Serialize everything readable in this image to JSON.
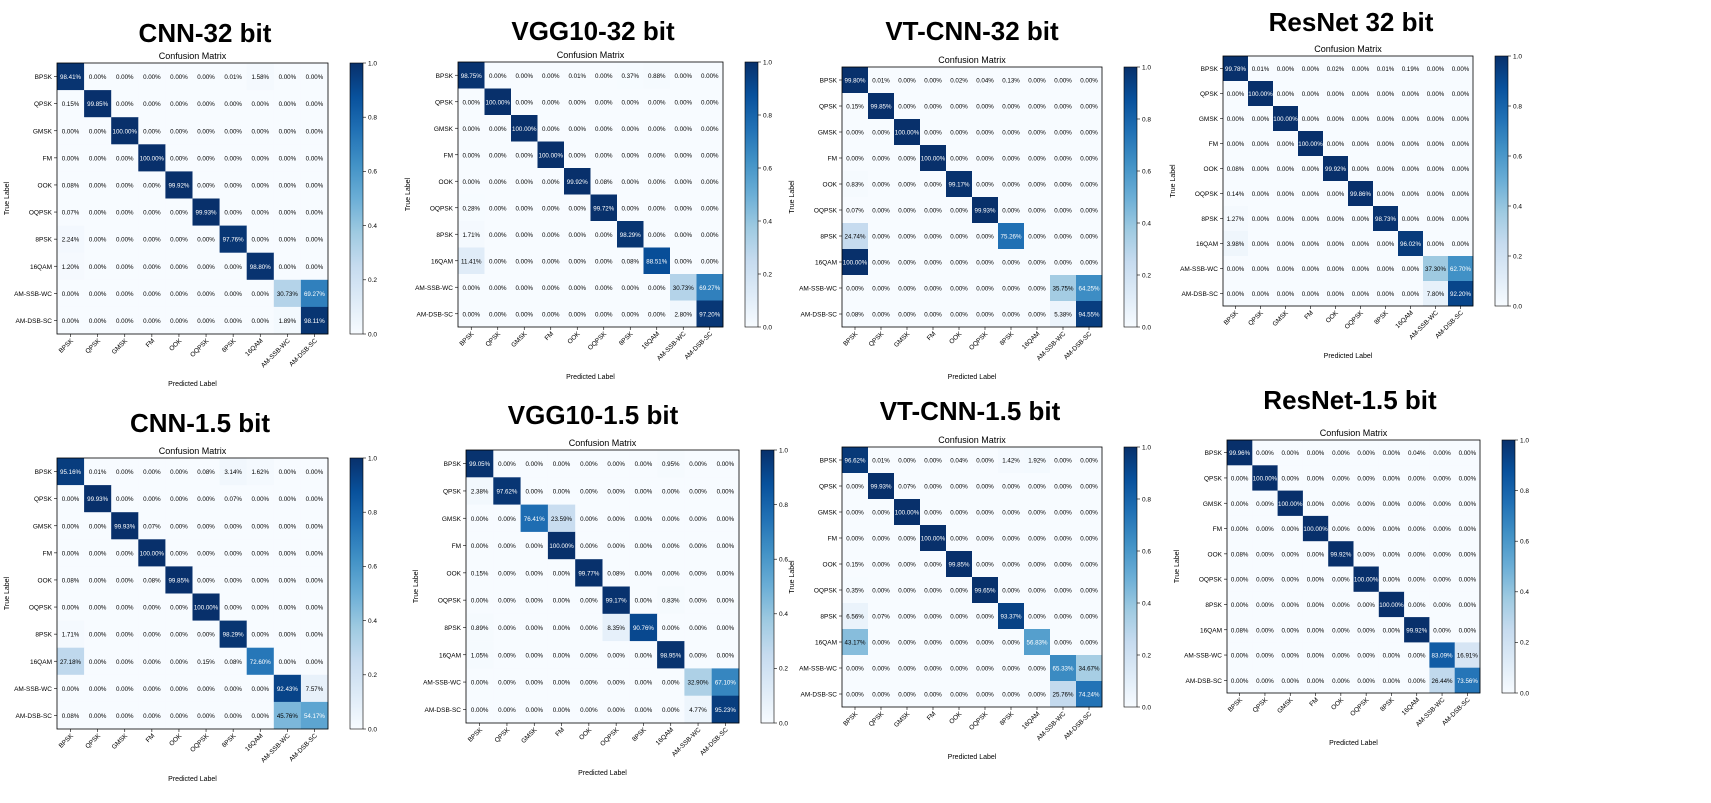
{
  "labels": [
    "BPSK",
    "QPSK",
    "GMSK",
    "FM",
    "OOK",
    "OQPSK",
    "8PSK",
    "16QAM",
    "AM-SSB-WC",
    "AM-DSB-SC"
  ],
  "inner_title": "Confusion Matrix",
  "xlabel": "Predicted Label",
  "ylabel": "True Label",
  "colorbar_ticks": [
    "0.0",
    "0.2",
    "0.4",
    "0.6",
    "0.8",
    "1.0"
  ],
  "chart_data": [
    {
      "type": "heatmap",
      "title": "CNN-32 bit",
      "subtitle": "Confusion Matrix",
      "xlabel": "Predicted Label",
      "ylabel": "True Label",
      "vmin": 0,
      "vmax": 1,
      "cells": [
        [
          "98.41%",
          "0.00%",
          "0.00%",
          "0.00%",
          "0.00%",
          "0.00%",
          "0.01%",
          "1.58%",
          "0.00%",
          "0.00%"
        ],
        [
          "0.15%",
          "99.85%",
          "0.00%",
          "0.00%",
          "0.00%",
          "0.00%",
          "0.00%",
          "0.00%",
          "0.00%",
          "0.00%"
        ],
        [
          "0.00%",
          "0.00%",
          "100.00%",
          "0.00%",
          "0.00%",
          "0.00%",
          "0.00%",
          "0.00%",
          "0.00%",
          "0.00%"
        ],
        [
          "0.00%",
          "0.00%",
          "0.00%",
          "100.00%",
          "0.00%",
          "0.00%",
          "0.00%",
          "0.00%",
          "0.00%",
          "0.00%"
        ],
        [
          "0.08%",
          "0.00%",
          "0.00%",
          "0.00%",
          "99.92%",
          "0.00%",
          "0.00%",
          "0.00%",
          "0.00%",
          "0.00%"
        ],
        [
          "0.07%",
          "0.00%",
          "0.00%",
          "0.00%",
          "0.00%",
          "99.93%",
          "0.00%",
          "0.00%",
          "0.00%",
          "0.00%"
        ],
        [
          "2.24%",
          "0.00%",
          "0.00%",
          "0.00%",
          "0.00%",
          "0.00%",
          "97.76%",
          "0.00%",
          "0.00%",
          "0.00%"
        ],
        [
          "1.20%",
          "0.00%",
          "0.00%",
          "0.00%",
          "0.00%",
          "0.00%",
          "0.00%",
          "98.80%",
          "0.00%",
          "0.00%"
        ],
        [
          "0.00%",
          "0.00%",
          "0.00%",
          "0.00%",
          "0.00%",
          "0.00%",
          "0.00%",
          "0.00%",
          "30.73%",
          "69.27%"
        ],
        [
          "0.00%",
          "0.00%",
          "0.00%",
          "0.00%",
          "0.00%",
          "0.00%",
          "0.00%",
          "0.00%",
          "1.89%",
          "98.11%"
        ]
      ]
    },
    {
      "type": "heatmap",
      "title": "VGG10-32 bit",
      "subtitle": "Confusion Matrix",
      "xlabel": "Predicted Label",
      "ylabel": "True Label",
      "vmin": 0,
      "vmax": 1,
      "cells": [
        [
          "98.75%",
          "0.00%",
          "0.00%",
          "0.00%",
          "0.01%",
          "0.00%",
          "0.37%",
          "0.88%",
          "0.00%",
          "0.00%"
        ],
        [
          "0.00%",
          "100.00%",
          "0.00%",
          "0.00%",
          "0.00%",
          "0.00%",
          "0.00%",
          "0.00%",
          "0.00%",
          "0.00%"
        ],
        [
          "0.00%",
          "0.00%",
          "100.00%",
          "0.00%",
          "0.00%",
          "0.00%",
          "0.00%",
          "0.00%",
          "0.00%",
          "0.00%"
        ],
        [
          "0.00%",
          "0.00%",
          "0.00%",
          "100.00%",
          "0.00%",
          "0.00%",
          "0.00%",
          "0.00%",
          "0.00%",
          "0.00%"
        ],
        [
          "0.00%",
          "0.00%",
          "0.00%",
          "0.00%",
          "99.92%",
          "0.08%",
          "0.00%",
          "0.00%",
          "0.00%",
          "0.00%"
        ],
        [
          "0.28%",
          "0.00%",
          "0.00%",
          "0.00%",
          "0.00%",
          "99.72%",
          "0.00%",
          "0.00%",
          "0.00%",
          "0.00%"
        ],
        [
          "1.71%",
          "0.00%",
          "0.00%",
          "0.00%",
          "0.00%",
          "0.00%",
          "98.29%",
          "0.00%",
          "0.00%",
          "0.00%"
        ],
        [
          "11.41%",
          "0.00%",
          "0.00%",
          "0.00%",
          "0.00%",
          "0.00%",
          "0.08%",
          "88.51%",
          "0.00%",
          "0.00%"
        ],
        [
          "0.00%",
          "0.00%",
          "0.00%",
          "0.00%",
          "0.00%",
          "0.00%",
          "0.00%",
          "0.00%",
          "30.73%",
          "69.27%"
        ],
        [
          "0.00%",
          "0.00%",
          "0.00%",
          "0.00%",
          "0.00%",
          "0.00%",
          "0.00%",
          "0.00%",
          "2.80%",
          "97.20%"
        ]
      ]
    },
    {
      "type": "heatmap",
      "title": "VT-CNN-32 bit",
      "subtitle": "Confusion Matrix",
      "xlabel": "Predicted Label",
      "ylabel": "True Label",
      "vmin": 0,
      "vmax": 1,
      "cells": [
        [
          "99.80%",
          "0.01%",
          "0.00%",
          "0.00%",
          "0.02%",
          "0.04%",
          "0.13%",
          "0.00%",
          "0.00%",
          "0.00%"
        ],
        [
          "0.15%",
          "99.85%",
          "0.00%",
          "0.00%",
          "0.00%",
          "0.00%",
          "0.00%",
          "0.00%",
          "0.00%",
          "0.00%"
        ],
        [
          "0.00%",
          "0.00%",
          "100.00%",
          "0.00%",
          "0.00%",
          "0.00%",
          "0.00%",
          "0.00%",
          "0.00%",
          "0.00%"
        ],
        [
          "0.00%",
          "0.00%",
          "0.00%",
          "100.00%",
          "0.00%",
          "0.00%",
          "0.00%",
          "0.00%",
          "0.00%",
          "0.00%"
        ],
        [
          "0.83%",
          "0.00%",
          "0.00%",
          "0.00%",
          "99.17%",
          "0.00%",
          "0.00%",
          "0.00%",
          "0.00%",
          "0.00%"
        ],
        [
          "0.07%",
          "0.00%",
          "0.00%",
          "0.00%",
          "0.00%",
          "99.93%",
          "0.00%",
          "0.00%",
          "0.00%",
          "0.00%"
        ],
        [
          "24.74%",
          "0.00%",
          "0.00%",
          "0.00%",
          "0.00%",
          "0.00%",
          "75.26%",
          "0.00%",
          "0.00%",
          "0.00%"
        ],
        [
          "100.00%",
          "0.00%",
          "0.00%",
          "0.00%",
          "0.00%",
          "0.00%",
          "0.00%",
          "0.00%",
          "0.00%",
          "0.00%"
        ],
        [
          "0.00%",
          "0.00%",
          "0.00%",
          "0.00%",
          "0.00%",
          "0.00%",
          "0.00%",
          "0.00%",
          "35.75%",
          "64.25%"
        ],
        [
          "0.08%",
          "0.00%",
          "0.00%",
          "0.00%",
          "0.00%",
          "0.00%",
          "0.00%",
          "0.00%",
          "5.38%",
          "94.55%"
        ]
      ]
    },
    {
      "type": "heatmap",
      "title": "ResNet 32 bit",
      "subtitle": "Confusion Matrix",
      "xlabel": "Predicted Label",
      "ylabel": "True Label",
      "vmin": 0,
      "vmax": 1,
      "cells": [
        [
          "99.78%",
          "0.01%",
          "0.00%",
          "0.00%",
          "0.02%",
          "0.00%",
          "0.01%",
          "0.19%",
          "0.00%",
          "0.00%"
        ],
        [
          "0.00%",
          "100.00%",
          "0.00%",
          "0.00%",
          "0.00%",
          "0.00%",
          "0.00%",
          "0.00%",
          "0.00%",
          "0.00%"
        ],
        [
          "0.00%",
          "0.00%",
          "100.00%",
          "0.00%",
          "0.00%",
          "0.00%",
          "0.00%",
          "0.00%",
          "0.00%",
          "0.00%"
        ],
        [
          "0.00%",
          "0.00%",
          "0.00%",
          "100.00%",
          "0.00%",
          "0.00%",
          "0.00%",
          "0.00%",
          "0.00%",
          "0.00%"
        ],
        [
          "0.08%",
          "0.00%",
          "0.00%",
          "0.00%",
          "99.92%",
          "0.00%",
          "0.00%",
          "0.00%",
          "0.00%",
          "0.00%"
        ],
        [
          "0.14%",
          "0.00%",
          "0.00%",
          "0.00%",
          "0.00%",
          "99.86%",
          "0.00%",
          "0.00%",
          "0.00%",
          "0.00%"
        ],
        [
          "1.27%",
          "0.00%",
          "0.00%",
          "0.00%",
          "0.00%",
          "0.00%",
          "98.73%",
          "0.00%",
          "0.00%",
          "0.00%"
        ],
        [
          "3.98%",
          "0.00%",
          "0.00%",
          "0.00%",
          "0.00%",
          "0.00%",
          "0.00%",
          "96.02%",
          "0.00%",
          "0.00%"
        ],
        [
          "0.00%",
          "0.00%",
          "0.00%",
          "0.00%",
          "0.00%",
          "0.00%",
          "0.00%",
          "0.00%",
          "37.30%",
          "62.70%"
        ],
        [
          "0.00%",
          "0.00%",
          "0.00%",
          "0.00%",
          "0.00%",
          "0.00%",
          "0.00%",
          "0.00%",
          "7.80%",
          "92.20%"
        ]
      ]
    },
    {
      "type": "heatmap",
      "title": "CNN-1.5 bit",
      "subtitle": "Confusion Matrix",
      "xlabel": "Predicted Label",
      "ylabel": "True Label",
      "vmin": 0,
      "vmax": 1,
      "cells": [
        [
          "95.16%",
          "0.01%",
          "0.00%",
          "0.00%",
          "0.00%",
          "0.08%",
          "3.14%",
          "1.62%",
          "0.00%",
          "0.00%"
        ],
        [
          "0.00%",
          "99.93%",
          "0.00%",
          "0.00%",
          "0.00%",
          "0.00%",
          "0.07%",
          "0.00%",
          "0.00%",
          "0.00%"
        ],
        [
          "0.00%",
          "0.00%",
          "99.93%",
          "0.07%",
          "0.00%",
          "0.00%",
          "0.00%",
          "0.00%",
          "0.00%",
          "0.00%"
        ],
        [
          "0.00%",
          "0.00%",
          "0.00%",
          "100.00%",
          "0.00%",
          "0.00%",
          "0.00%",
          "0.00%",
          "0.00%",
          "0.00%"
        ],
        [
          "0.08%",
          "0.00%",
          "0.00%",
          "0.08%",
          "99.85%",
          "0.00%",
          "0.00%",
          "0.00%",
          "0.00%",
          "0.00%"
        ],
        [
          "0.00%",
          "0.00%",
          "0.00%",
          "0.00%",
          "0.00%",
          "100.00%",
          "0.00%",
          "0.00%",
          "0.00%",
          "0.00%"
        ],
        [
          "1.71%",
          "0.00%",
          "0.00%",
          "0.00%",
          "0.00%",
          "0.00%",
          "98.29%",
          "0.00%",
          "0.00%",
          "0.00%"
        ],
        [
          "27.18%",
          "0.00%",
          "0.00%",
          "0.00%",
          "0.00%",
          "0.15%",
          "0.08%",
          "72.60%",
          "0.00%",
          "0.00%"
        ],
        [
          "0.00%",
          "0.00%",
          "0.00%",
          "0.00%",
          "0.00%",
          "0.00%",
          "0.00%",
          "0.00%",
          "92.43%",
          "7.57%"
        ],
        [
          "0.08%",
          "0.00%",
          "0.00%",
          "0.00%",
          "0.00%",
          "0.00%",
          "0.00%",
          "0.00%",
          "45.76%",
          "54.17%"
        ]
      ]
    },
    {
      "type": "heatmap",
      "title": "VGG10-1.5 bit",
      "subtitle": "Confusion Matrix",
      "xlabel": "Predicted Label",
      "ylabel": "True Label",
      "vmin": 0,
      "vmax": 1,
      "cells": [
        [
          "99.05%",
          "0.00%",
          "0.00%",
          "0.00%",
          "0.00%",
          "0.00%",
          "0.00%",
          "0.95%",
          "0.00%",
          "0.00%"
        ],
        [
          "2.38%",
          "97.62%",
          "0.00%",
          "0.00%",
          "0.00%",
          "0.00%",
          "0.00%",
          "0.00%",
          "0.00%",
          "0.00%"
        ],
        [
          "0.00%",
          "0.00%",
          "76.41%",
          "23.59%",
          "0.00%",
          "0.00%",
          "0.00%",
          "0.00%",
          "0.00%",
          "0.00%"
        ],
        [
          "0.00%",
          "0.00%",
          "0.00%",
          "100.00%",
          "0.00%",
          "0.00%",
          "0.00%",
          "0.00%",
          "0.00%",
          "0.00%"
        ],
        [
          "0.15%",
          "0.00%",
          "0.00%",
          "0.00%",
          "99.77%",
          "0.08%",
          "0.00%",
          "0.00%",
          "0.00%",
          "0.00%"
        ],
        [
          "0.00%",
          "0.00%",
          "0.00%",
          "0.00%",
          "0.00%",
          "99.17%",
          "0.00%",
          "0.83%",
          "0.00%",
          "0.00%"
        ],
        [
          "0.89%",
          "0.00%",
          "0.00%",
          "0.00%",
          "0.00%",
          "8.35%",
          "90.76%",
          "0.00%",
          "0.00%",
          "0.00%"
        ],
        [
          "1.05%",
          "0.00%",
          "0.00%",
          "0.00%",
          "0.00%",
          "0.00%",
          "0.00%",
          "98.95%",
          "0.00%",
          "0.00%"
        ],
        [
          "0.00%",
          "0.00%",
          "0.00%",
          "0.00%",
          "0.00%",
          "0.00%",
          "0.00%",
          "0.00%",
          "32.90%",
          "67.10%"
        ],
        [
          "0.00%",
          "0.00%",
          "0.00%",
          "0.00%",
          "0.00%",
          "0.00%",
          "0.00%",
          "0.00%",
          "4.77%",
          "95.23%"
        ]
      ]
    },
    {
      "type": "heatmap",
      "title": "VT-CNN-1.5 bit",
      "subtitle": "Confusion Matrix",
      "xlabel": "Predicted Label",
      "ylabel": "True Label",
      "vmin": 0,
      "vmax": 1,
      "cells": [
        [
          "96.62%",
          "0.01%",
          "0.00%",
          "0.00%",
          "0.04%",
          "0.00%",
          "1.42%",
          "1.92%",
          "0.00%",
          "0.00%"
        ],
        [
          "0.00%",
          "99.93%",
          "0.07%",
          "0.00%",
          "0.00%",
          "0.00%",
          "0.00%",
          "0.00%",
          "0.00%",
          "0.00%"
        ],
        [
          "0.00%",
          "0.00%",
          "100.00%",
          "0.00%",
          "0.00%",
          "0.00%",
          "0.00%",
          "0.00%",
          "0.00%",
          "0.00%"
        ],
        [
          "0.00%",
          "0.00%",
          "0.00%",
          "100.00%",
          "0.00%",
          "0.00%",
          "0.00%",
          "0.00%",
          "0.00%",
          "0.00%"
        ],
        [
          "0.15%",
          "0.00%",
          "0.00%",
          "0.00%",
          "99.85%",
          "0.00%",
          "0.00%",
          "0.00%",
          "0.00%",
          "0.00%"
        ],
        [
          "0.35%",
          "0.00%",
          "0.00%",
          "0.00%",
          "0.00%",
          "99.65%",
          "0.00%",
          "0.00%",
          "0.00%",
          "0.00%"
        ],
        [
          "6.56%",
          "0.07%",
          "0.00%",
          "0.00%",
          "0.00%",
          "0.00%",
          "93.37%",
          "0.00%",
          "0.00%",
          "0.00%"
        ],
        [
          "43.17%",
          "0.00%",
          "0.00%",
          "0.00%",
          "0.00%",
          "0.00%",
          "0.00%",
          "56.83%",
          "0.00%",
          "0.00%"
        ],
        [
          "0.00%",
          "0.00%",
          "0.00%",
          "0.00%",
          "0.00%",
          "0.00%",
          "0.00%",
          "0.00%",
          "65.33%",
          "34.67%"
        ],
        [
          "0.00%",
          "0.00%",
          "0.00%",
          "0.00%",
          "0.00%",
          "0.00%",
          "0.00%",
          "0.00%",
          "25.76%",
          "74.24%"
        ]
      ]
    },
    {
      "type": "heatmap",
      "title": "ResNet-1.5 bit",
      "subtitle": "Confusion Matrix",
      "xlabel": "Predicted Label",
      "ylabel": "True Label",
      "vmin": 0,
      "vmax": 1,
      "cells": [
        [
          "99.96%",
          "0.00%",
          "0.00%",
          "0.00%",
          "0.00%",
          "0.00%",
          "0.00%",
          "0.04%",
          "0.00%",
          "0.00%"
        ],
        [
          "0.00%",
          "100.00%",
          "0.00%",
          "0.00%",
          "0.00%",
          "0.00%",
          "0.00%",
          "0.00%",
          "0.00%",
          "0.00%"
        ],
        [
          "0.00%",
          "0.00%",
          "100.00%",
          "0.00%",
          "0.00%",
          "0.00%",
          "0.00%",
          "0.00%",
          "0.00%",
          "0.00%"
        ],
        [
          "0.00%",
          "0.00%",
          "0.00%",
          "100.00%",
          "0.00%",
          "0.00%",
          "0.00%",
          "0.00%",
          "0.00%",
          "0.00%"
        ],
        [
          "0.08%",
          "0.00%",
          "0.00%",
          "0.00%",
          "99.92%",
          "0.00%",
          "0.00%",
          "0.00%",
          "0.00%",
          "0.00%"
        ],
        [
          "0.00%",
          "0.00%",
          "0.00%",
          "0.00%",
          "0.00%",
          "100.00%",
          "0.00%",
          "0.00%",
          "0.00%",
          "0.00%"
        ],
        [
          "0.00%",
          "0.00%",
          "0.00%",
          "0.00%",
          "0.00%",
          "0.00%",
          "100.00%",
          "0.00%",
          "0.00%",
          "0.00%"
        ],
        [
          "0.08%",
          "0.00%",
          "0.00%",
          "0.00%",
          "0.00%",
          "0.00%",
          "0.00%",
          "99.92%",
          "0.00%",
          "0.00%"
        ],
        [
          "0.00%",
          "0.00%",
          "0.00%",
          "0.00%",
          "0.00%",
          "0.00%",
          "0.00%",
          "0.00%",
          "83.09%",
          "16.91%"
        ],
        [
          "0.00%",
          "0.00%",
          "0.00%",
          "0.00%",
          "0.00%",
          "0.00%",
          "0.00%",
          "0.00%",
          "26.44%",
          "73.56%"
        ]
      ]
    }
  ]
}
